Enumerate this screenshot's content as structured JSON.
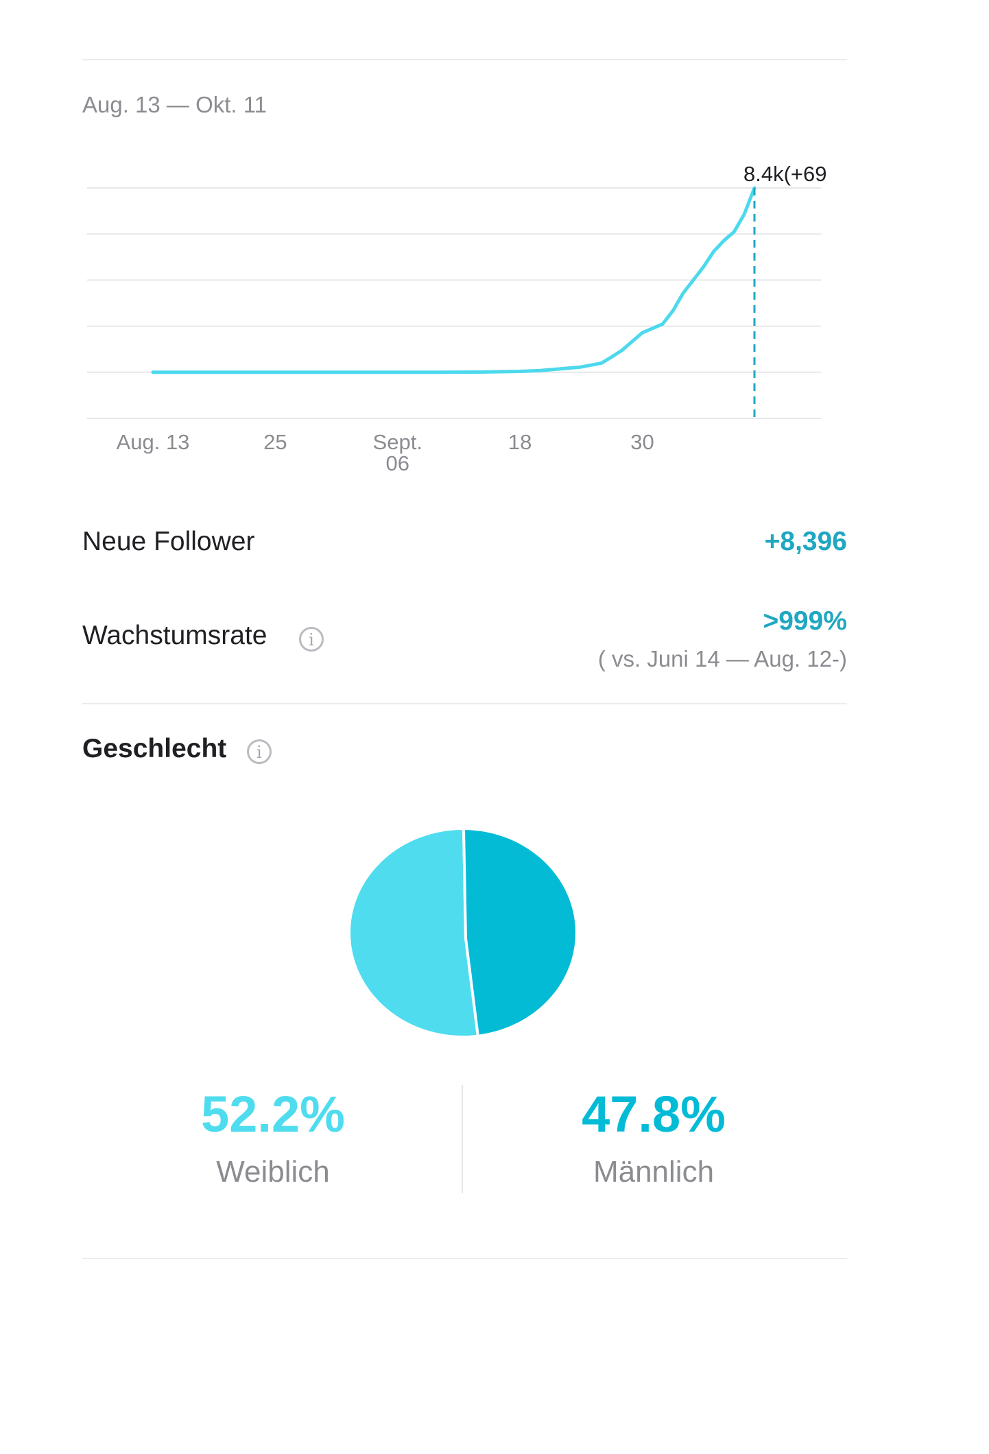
{
  "date_range": "Aug. 13 — Okt. 11",
  "chart_data": {
    "type": "line",
    "x_tick_labels": [
      "Aug. 13",
      "25",
      "Sept.\n06",
      "18",
      "30"
    ],
    "x_start": "2023-08-13",
    "x_end": "2023-10-11",
    "x": [
      "08-13",
      "08-17",
      "08-21",
      "08-25",
      "08-29",
      "09-02",
      "09-06",
      "09-10",
      "09-14",
      "09-18",
      "09-20",
      "09-22",
      "09-24",
      "09-26",
      "09-27",
      "09-28",
      "09-29",
      "09-30",
      "10-01",
      "10-02",
      "10-03",
      "10-04",
      "10-05",
      "10-06",
      "10-07",
      "10-08",
      "10-09",
      "10-10",
      "10-11"
    ],
    "y": [
      0,
      0,
      0,
      0,
      0,
      0,
      0,
      0,
      10,
      40,
      80,
      160,
      240,
      420,
      700,
      1000,
      1400,
      1800,
      2000,
      2200,
      2800,
      3600,
      4200,
      4800,
      5500,
      6000,
      6400,
      7200,
      8400
    ],
    "ylim": [
      0,
      10500
    ],
    "grid": true,
    "annotation": "8.4k(+69",
    "line_color": "#4dd9ed"
  },
  "metrics": {
    "new_followers_label": "Neue Follower",
    "new_followers_value": "+8,396",
    "growth_label": "Wachstumsrate",
    "growth_value": ">999%",
    "growth_compare": "( vs. Juni 14 — Aug. 12-)"
  },
  "gender": {
    "title": "Geschlecht",
    "female_pct": 52.2,
    "male_pct": 47.8,
    "female_pct_text": "52.2%",
    "male_pct_text": "47.8%",
    "female_label": "Weiblich",
    "male_label": "Männlich",
    "female_color": "#4fdcef",
    "male_color": "#04bbd6"
  },
  "icons": {
    "info": "info-icon"
  },
  "info_glyph": "i"
}
